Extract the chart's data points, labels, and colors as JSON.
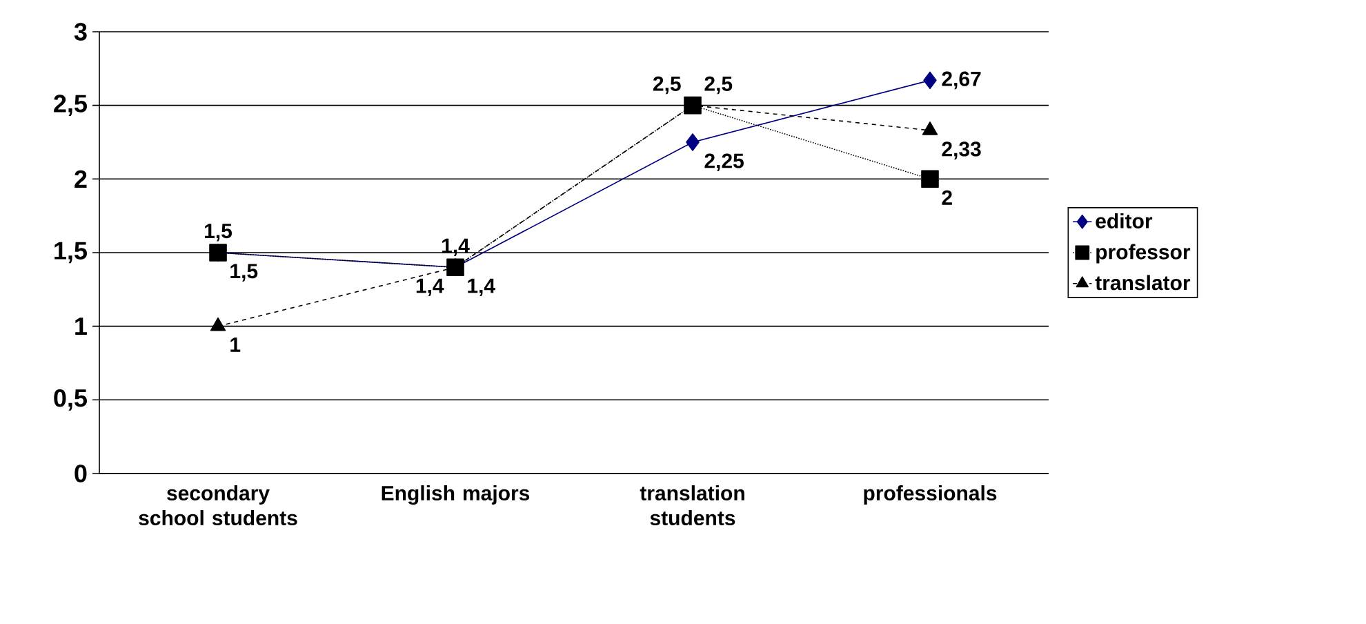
{
  "chart_data": {
    "type": "line",
    "categories": [
      "secondary school students",
      "English majors",
      "translation students",
      "professionals"
    ],
    "series": [
      {
        "name": "editor",
        "color": "#000080",
        "marker": "diamond",
        "line_style": "solid",
        "values": [
          1.5,
          1.4,
          2.25,
          2.67
        ],
        "value_labels": [
          "1,5",
          "1,4",
          "2,25",
          "2,67"
        ]
      },
      {
        "name": "professor",
        "color": "#000000",
        "marker": "square",
        "line_style": "dotted",
        "values": [
          1.5,
          1.4,
          2.5,
          2
        ],
        "value_labels": [
          "1,5",
          "1,4",
          "2,5",
          "2"
        ]
      },
      {
        "name": "translator",
        "color": "#000000",
        "marker": "triangle",
        "line_style": "dashed",
        "values": [
          1,
          1.4,
          2.5,
          2.33
        ],
        "value_labels": [
          "1",
          "1,4",
          "2,5",
          "2,33"
        ]
      }
    ],
    "ylim": [
      0,
      3
    ],
    "yticks": [
      0,
      {
        "value": 0.5,
        "label": "0,5"
      },
      1,
      {
        "value": 1.5,
        "label": "1,5"
      },
      2,
      {
        "value": 2.5,
        "label": "2,5"
      },
      3
    ],
    "grid": "y",
    "legend": "right"
  }
}
